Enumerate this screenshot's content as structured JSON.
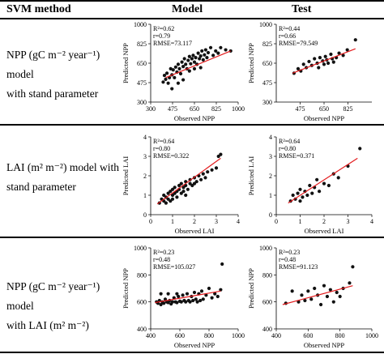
{
  "header": {
    "method": "SVM method",
    "model": "Model",
    "test": "Test"
  },
  "rows": [
    {
      "desc_line1": "NPP (gC m⁻² year⁻¹) model",
      "desc_line2": "with stand parameter"
    },
    {
      "desc_line1": "LAI (m² m⁻²) model with",
      "desc_line2": "stand parameter"
    },
    {
      "desc_line1": "NPP (gC m⁻² year⁻¹) model",
      "desc_line2": "with LAI (m² m⁻²)"
    }
  ],
  "chart_data": [
    {
      "type": "scatter",
      "row": 0,
      "panel": "Model",
      "xlabel": "Observed NPP",
      "ylabel": "Predicted NPP",
      "xlim": [
        300,
        1000
      ],
      "ylim": [
        300,
        1000
      ],
      "xticks": [
        300,
        475,
        650,
        825,
        1000
      ],
      "yticks": [
        300,
        475,
        650,
        825,
        1000
      ],
      "stats": [
        "R²=0.62",
        "r=0.79",
        "RMSE=73.117"
      ],
      "trendline": [
        [
          420,
          520
        ],
        [
          940,
          760
        ]
      ],
      "points": [
        [
          400,
          480
        ],
        [
          410,
          540
        ],
        [
          420,
          505
        ],
        [
          430,
          560
        ],
        [
          440,
          470
        ],
        [
          450,
          520
        ],
        [
          460,
          600
        ],
        [
          470,
          545
        ],
        [
          480,
          590
        ],
        [
          490,
          520
        ],
        [
          500,
          615
        ],
        [
          510,
          570
        ],
        [
          520,
          640
        ],
        [
          530,
          600
        ],
        [
          540,
          555
        ],
        [
          550,
          660
        ],
        [
          560,
          620
        ],
        [
          570,
          690
        ],
        [
          580,
          640
        ],
        [
          590,
          600
        ],
        [
          600,
          675
        ],
        [
          610,
          710
        ],
        [
          620,
          645
        ],
        [
          630,
          690
        ],
        [
          640,
          720
        ],
        [
          650,
          660
        ],
        [
          660,
          700
        ],
        [
          670,
          640
        ],
        [
          680,
          740
        ],
        [
          690,
          690
        ],
        [
          700,
          715
        ],
        [
          710,
          760
        ],
        [
          720,
          680
        ],
        [
          730,
          725
        ],
        [
          740,
          770
        ],
        [
          750,
          700
        ],
        [
          760,
          745
        ],
        [
          780,
          790
        ],
        [
          800,
          720
        ],
        [
          820,
          760
        ],
        [
          840,
          740
        ],
        [
          860,
          790
        ],
        [
          900,
          770
        ],
        [
          940,
          760
        ],
        [
          470,
          420
        ],
        [
          520,
          470
        ],
        [
          560,
          500
        ],
        [
          610,
          580
        ],
        [
          650,
          600
        ],
        [
          700,
          610
        ]
      ]
    },
    {
      "type": "scatter",
      "row": 0,
      "panel": "Test",
      "xlabel": "Observed NPP",
      "ylabel": "Predicted NPP",
      "xlim": [
        300,
        1000
      ],
      "ylim": [
        300,
        1000
      ],
      "xticks": [
        475,
        650,
        825
      ],
      "yticks": [
        300,
        475,
        650,
        825,
        1000
      ],
      "stats": [
        "R²=0.44",
        "r=0.66",
        "RMSE=79.549"
      ],
      "trendline": [
        [
          420,
          560
        ],
        [
          880,
          780
        ]
      ],
      "points": [
        [
          430,
          560
        ],
        [
          460,
          600
        ],
        [
          480,
          580
        ],
        [
          500,
          640
        ],
        [
          520,
          610
        ],
        [
          540,
          665
        ],
        [
          560,
          630
        ],
        [
          580,
          690
        ],
        [
          600,
          650
        ],
        [
          610,
          610
        ],
        [
          620,
          700
        ],
        [
          640,
          670
        ],
        [
          650,
          640
        ],
        [
          660,
          710
        ],
        [
          670,
          680
        ],
        [
          680,
          650
        ],
        [
          700,
          730
        ],
        [
          710,
          690
        ],
        [
          720,
          660
        ],
        [
          740,
          700
        ],
        [
          760,
          740
        ],
        [
          790,
          720
        ],
        [
          820,
          770
        ],
        [
          880,
          860
        ]
      ]
    },
    {
      "type": "scatter",
      "row": 1,
      "panel": "Model",
      "xlabel": "Observed LAI",
      "ylabel": "Predicted LAI",
      "xlim": [
        0,
        4
      ],
      "ylim": [
        0,
        4
      ],
      "xticks": [
        0,
        1,
        2,
        3,
        4
      ],
      "yticks": [
        0,
        1,
        2,
        3,
        4
      ],
      "stats": [
        "R²=0.64",
        "r=0.80",
        "RMSE=0.322"
      ],
      "trendline": [
        [
          0.3,
          0.55
        ],
        [
          3.2,
          2.9
        ]
      ],
      "points": [
        [
          0.4,
          0.6
        ],
        [
          0.5,
          0.8
        ],
        [
          0.6,
          0.7
        ],
        [
          0.6,
          1.0
        ],
        [
          0.7,
          0.9
        ],
        [
          0.8,
          1.1
        ],
        [
          0.8,
          0.8
        ],
        [
          0.9,
          1.2
        ],
        [
          1.0,
          1.0
        ],
        [
          1.0,
          1.3
        ],
        [
          1.1,
          1.1
        ],
        [
          1.1,
          1.4
        ],
        [
          1.2,
          1.2
        ],
        [
          1.2,
          0.9
        ],
        [
          1.3,
          1.5
        ],
        [
          1.3,
          1.3
        ],
        [
          1.4,
          1.1
        ],
        [
          1.4,
          1.6
        ],
        [
          1.5,
          1.4
        ],
        [
          1.5,
          1.2
        ],
        [
          1.6,
          1.7
        ],
        [
          1.6,
          1.5
        ],
        [
          1.7,
          1.3
        ],
        [
          1.8,
          1.6
        ],
        [
          1.8,
          1.8
        ],
        [
          1.9,
          1.5
        ],
        [
          2.0,
          1.9
        ],
        [
          2.0,
          1.6
        ],
        [
          2.1,
          1.7
        ],
        [
          2.2,
          2.0
        ],
        [
          2.3,
          1.8
        ],
        [
          2.4,
          2.1
        ],
        [
          2.5,
          1.9
        ],
        [
          2.6,
          2.2
        ],
        [
          2.8,
          2.3
        ],
        [
          3.0,
          2.4
        ],
        [
          3.1,
          3.0
        ],
        [
          3.2,
          3.1
        ],
        [
          0.7,
          0.6
        ],
        [
          0.9,
          0.7
        ],
        [
          1.0,
          0.8
        ],
        [
          1.6,
          1.0
        ]
      ]
    },
    {
      "type": "scatter",
      "row": 1,
      "panel": "Test",
      "xlabel": "Observed LAI",
      "ylabel": "Predicted LAI",
      "xlim": [
        0,
        4
      ],
      "ylim": [
        0,
        4
      ],
      "xticks": [
        0,
        1,
        2,
        3,
        4
      ],
      "yticks": [
        0,
        1,
        2,
        3,
        4
      ],
      "stats": [
        "R²=0.64",
        "r=0.80",
        "RMSE=0.371"
      ],
      "trendline": [
        [
          0.5,
          0.6
        ],
        [
          3.4,
          2.9
        ]
      ],
      "points": [
        [
          0.6,
          0.7
        ],
        [
          0.7,
          1.0
        ],
        [
          0.8,
          0.8
        ],
        [
          0.9,
          1.1
        ],
        [
          1.0,
          0.7
        ],
        [
          1.0,
          1.3
        ],
        [
          1.1,
          0.9
        ],
        [
          1.2,
          1.2
        ],
        [
          1.3,
          1.0
        ],
        [
          1.4,
          1.5
        ],
        [
          1.5,
          1.1
        ],
        [
          1.6,
          1.4
        ],
        [
          1.7,
          1.8
        ],
        [
          1.8,
          1.2
        ],
        [
          2.0,
          1.6
        ],
        [
          2.2,
          1.5
        ],
        [
          2.4,
          2.1
        ],
        [
          2.6,
          1.9
        ],
        [
          3.0,
          2.5
        ],
        [
          3.5,
          3.4
        ]
      ]
    },
    {
      "type": "scatter",
      "row": 2,
      "panel": "Model",
      "xlabel": "Observed NPP",
      "ylabel": "Predicted NPP",
      "xlim": [
        400,
        1000
      ],
      "ylim": [
        400,
        1000
      ],
      "xticks": [
        400,
        600,
        800,
        1000
      ],
      "yticks": [
        400,
        600,
        800,
        1000
      ],
      "stats": [
        "R²=0.23",
        "r=0.48",
        "RMSE=105.027"
      ],
      "trendline": [
        [
          430,
          595
        ],
        [
          880,
          680
        ]
      ],
      "points": [
        [
          440,
          600
        ],
        [
          450,
          590
        ],
        [
          460,
          610
        ],
        [
          470,
          580
        ],
        [
          480,
          600
        ],
        [
          490,
          590
        ],
        [
          500,
          620
        ],
        [
          510,
          600
        ],
        [
          520,
          595
        ],
        [
          530,
          610
        ],
        [
          540,
          585
        ],
        [
          550,
          600
        ],
        [
          560,
          630
        ],
        [
          570,
          600
        ],
        [
          580,
          595
        ],
        [
          590,
          640
        ],
        [
          600,
          605
        ],
        [
          610,
          600
        ],
        [
          620,
          650
        ],
        [
          630,
          610
        ],
        [
          640,
          600
        ],
        [
          650,
          660
        ],
        [
          660,
          610
        ],
        [
          670,
          600
        ],
        [
          680,
          640
        ],
        [
          690,
          610
        ],
        [
          700,
          670
        ],
        [
          710,
          620
        ],
        [
          720,
          600
        ],
        [
          730,
          660
        ],
        [
          740,
          610
        ],
        [
          750,
          680
        ],
        [
          760,
          620
        ],
        [
          780,
          650
        ],
        [
          800,
          700
        ],
        [
          820,
          630
        ],
        [
          840,
          660
        ],
        [
          860,
          640
        ],
        [
          880,
          690
        ],
        [
          890,
          880
        ],
        [
          470,
          660
        ],
        [
          520,
          660
        ],
        [
          580,
          660
        ]
      ]
    },
    {
      "type": "scatter",
      "row": 2,
      "panel": "Test",
      "xlabel": "Observed NPP",
      "ylabel": "Predicted NPP",
      "xlim": [
        400,
        1000
      ],
      "ylim": [
        400,
        1000
      ],
      "xticks": [
        400,
        600,
        800,
        1000
      ],
      "yticks": [
        400,
        600,
        800,
        1000
      ],
      "stats": [
        "R²=0.23",
        "r=0.48",
        "RMSE=91.123"
      ],
      "trendline": [
        [
          440,
          580
        ],
        [
          880,
          720
        ]
      ],
      "points": [
        [
          460,
          590
        ],
        [
          500,
          680
        ],
        [
          540,
          600
        ],
        [
          560,
          650
        ],
        [
          580,
          610
        ],
        [
          600,
          680
        ],
        [
          620,
          620
        ],
        [
          640,
          700
        ],
        [
          660,
          650
        ],
        [
          680,
          580
        ],
        [
          700,
          720
        ],
        [
          720,
          640
        ],
        [
          740,
          690
        ],
        [
          760,
          600
        ],
        [
          780,
          670
        ],
        [
          800,
          640
        ],
        [
          820,
          700
        ],
        [
          860,
          740
        ],
        [
          880,
          860
        ]
      ]
    }
  ]
}
